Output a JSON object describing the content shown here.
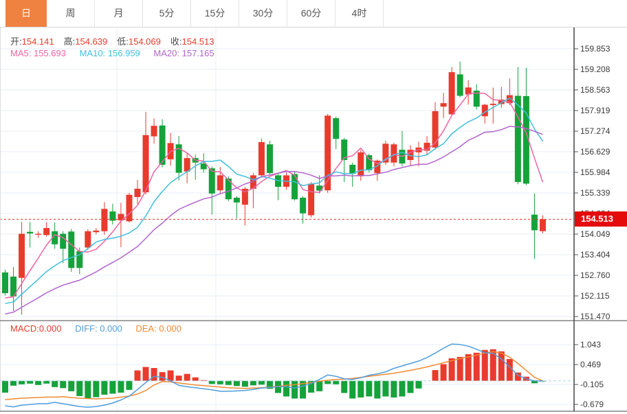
{
  "tabs": {
    "items": [
      {
        "name": "tab-day",
        "label": "日",
        "active": true
      },
      {
        "name": "tab-week",
        "label": "周",
        "active": false
      },
      {
        "name": "tab-month",
        "label": "月",
        "active": false
      },
      {
        "name": "tab-5min",
        "label": "5分",
        "active": false
      },
      {
        "name": "tab-15min",
        "label": "15分",
        "active": false
      },
      {
        "name": "tab-30min",
        "label": "30分",
        "active": false
      },
      {
        "name": "tab-60min",
        "label": "60分",
        "active": false
      },
      {
        "name": "tab-4hour",
        "label": "4时",
        "active": false
      }
    ]
  },
  "ohlc_row": {
    "open_label": "开:",
    "open_value": "154.141",
    "high_label": "高:",
    "high_value": "154.639",
    "low_label": "低:",
    "low_value": "154.069",
    "close_label": "收:",
    "close_value": "154.513"
  },
  "ma_row": {
    "ma5_label": "MA5:",
    "ma5_value": "155.693",
    "ma10_label": "MA10:",
    "ma10_value": "156.959",
    "ma20_label": "MA20:",
    "ma20_value": "157.165"
  },
  "macd_row": {
    "macd_label": "MACD:",
    "macd_value": "0.000",
    "diff_label": "DIFF:",
    "diff_value": "0.000",
    "dea_label": "DEA:",
    "dea_value": "0.000"
  },
  "price_tag": {
    "value": "154.513"
  },
  "colors": {
    "up": "#e83b2e",
    "down": "#15a23a",
    "ma5": "#ef63a2",
    "ma10": "#3fc0dc",
    "ma20": "#b164cc",
    "diff": "#4f9ddc",
    "dea": "#ef8b33",
    "tab_active_bg": "#ef8240",
    "tag_bg": "#e60b0b",
    "last_price_line": "#ee2b24",
    "zero_line": "#a9d6ec",
    "grid": "#e7eef6",
    "axis_text": "#3a3a3a",
    "frame": "#444444"
  },
  "chart_data": {
    "type": "candlestick",
    "panels": [
      {
        "name": "price-panel",
        "type": "candlestick",
        "y_tick_labels": [
          "159.853",
          "159.208",
          "158.563",
          "157.919",
          "157.274",
          "156.629",
          "155.984",
          "155.339",
          "154.694",
          "154.049",
          "153.404",
          "152.760",
          "152.115",
          "151.470"
        ],
        "ylim": [
          151.47,
          159.853
        ],
        "last_price": 154.513,
        "ma_periods": [
          5,
          10,
          20
        ],
        "ma_seed_closes_estimated": [
          150.9,
          150.95,
          151.0,
          151.05,
          151.1,
          151.15,
          151.2,
          151.3,
          151.4,
          151.5,
          151.55,
          151.6,
          151.65,
          151.7,
          151.75,
          151.8,
          151.9,
          152.0,
          152.05,
          152.1
        ],
        "candles_ohlc": [
          [
            152.85,
            152.94,
            152.13,
            152.2
          ],
          [
            152.72,
            153.02,
            151.64,
            152.1
          ],
          [
            152.68,
            154.43,
            151.53,
            154.06
          ],
          [
            154.12,
            154.43,
            153.63,
            154.07
          ],
          [
            154.04,
            154.14,
            153.93,
            154.06
          ],
          [
            154.02,
            154.43,
            153.97,
            154.24
          ],
          [
            154.14,
            154.42,
            153.59,
            153.73
          ],
          [
            154.06,
            154.14,
            153.14,
            153.59
          ],
          [
            154.13,
            154.21,
            152.87,
            152.99
          ],
          [
            153.52,
            153.63,
            152.8,
            152.99
          ],
          [
            153.63,
            154.2,
            153.56,
            154.14
          ],
          [
            154.11,
            154.24,
            154.04,
            154.16
          ],
          [
            154.14,
            155.05,
            154.03,
            154.84
          ],
          [
            154.76,
            155.0,
            154.35,
            154.47
          ],
          [
            154.48,
            155.03,
            153.64,
            154.68
          ],
          [
            154.45,
            155.34,
            154.41,
            155.28
          ],
          [
            155.21,
            155.75,
            154.99,
            155.47
          ],
          [
            155.36,
            157.88,
            155.29,
            157.15
          ],
          [
            157.11,
            157.67,
            156.88,
            157.44
          ],
          [
            157.45,
            157.65,
            156.14,
            156.22
          ],
          [
            156.39,
            157.22,
            156.19,
            156.9
          ],
          [
            156.86,
            157.12,
            155.73,
            155.97
          ],
          [
            156.01,
            156.58,
            155.64,
            156.43
          ],
          [
            156.43,
            156.54,
            155.75,
            156.29
          ],
          [
            156.26,
            156.58,
            155.97,
            156.08
          ],
          [
            156.11,
            156.17,
            154.66,
            155.32
          ],
          [
            155.42,
            156.15,
            155.32,
            155.89
          ],
          [
            155.79,
            155.86,
            155.08,
            155.14
          ],
          [
            155.19,
            155.24,
            154.54,
            155.04
          ],
          [
            154.97,
            155.53,
            154.32,
            155.47
          ],
          [
            155.47,
            155.96,
            154.86,
            155.89
          ],
          [
            155.89,
            157.04,
            155.82,
            156.93
          ],
          [
            156.86,
            156.97,
            155.91,
            155.96
          ],
          [
            155.89,
            155.94,
            155.11,
            155.53
          ],
          [
            155.53,
            155.98,
            155.44,
            155.89
          ],
          [
            155.93,
            156.0,
            155.1,
            155.14
          ],
          [
            155.19,
            155.24,
            154.38,
            154.7
          ],
          [
            154.64,
            155.68,
            154.57,
            155.63
          ],
          [
            155.57,
            155.89,
            155.32,
            155.41
          ],
          [
            155.42,
            157.81,
            155.34,
            157.76
          ],
          [
            157.68,
            157.73,
            156.71,
            157.03
          ],
          [
            157.01,
            157.06,
            155.68,
            156.37
          ],
          [
            156.22,
            156.29,
            155.53,
            155.94
          ],
          [
            155.86,
            156.69,
            155.72,
            156.61
          ],
          [
            156.52,
            156.57,
            155.98,
            156.05
          ],
          [
            155.96,
            156.39,
            155.72,
            156.35
          ],
          [
            156.29,
            156.97,
            156.22,
            156.88
          ],
          [
            156.29,
            156.91,
            156.17,
            156.86
          ],
          [
            156.69,
            157.28,
            156.17,
            156.26
          ],
          [
            156.37,
            156.83,
            156.17,
            156.69
          ],
          [
            156.61,
            156.94,
            156.17,
            156.76
          ],
          [
            156.66,
            157.12,
            156.54,
            156.91
          ],
          [
            156.76,
            158.18,
            156.69,
            157.9
          ],
          [
            158.04,
            158.47,
            157.68,
            158.15
          ],
          [
            157.8,
            159.28,
            157.75,
            159.12
          ],
          [
            159.05,
            159.45,
            158.33,
            158.38
          ],
          [
            158.42,
            158.87,
            158.1,
            158.64
          ],
          [
            158.54,
            158.74,
            157.95,
            158.04
          ],
          [
            157.74,
            158.13,
            157.51,
            158.1
          ],
          [
            158.09,
            158.64,
            157.51,
            158.13
          ],
          [
            158.12,
            158.66,
            158.0,
            158.26
          ],
          [
            158.15,
            158.92,
            158.09,
            158.4
          ],
          [
            158.38,
            159.28,
            155.61,
            155.68
          ],
          [
            158.37,
            159.26,
            155.58,
            155.63
          ],
          [
            154.66,
            155.32,
            153.27,
            154.17
          ],
          [
            154.141,
            154.639,
            154.069,
            154.513
          ]
        ]
      },
      {
        "name": "macd-panel",
        "type": "bar+line",
        "y_tick_labels": [
          "1.043",
          "0.469",
          "-0.105",
          "-0.679"
        ],
        "ylim": [
          -0.679,
          1.043
        ],
        "macd_hist": [
          -0.34,
          -0.14,
          -0.1,
          -0.08,
          -0.12,
          -0.08,
          -0.18,
          -0.21,
          -0.3,
          -0.44,
          -0.5,
          -0.47,
          -0.4,
          -0.37,
          -0.34,
          -0.26,
          0.3,
          0.4,
          0.37,
          0.25,
          0.3,
          0.15,
          0.2,
          0.1,
          0.02,
          -0.09,
          -0.1,
          -0.12,
          -0.15,
          -0.17,
          -0.13,
          -0.11,
          -0.23,
          -0.35,
          -0.45,
          -0.51,
          -0.51,
          -0.34,
          -0.3,
          -0.09,
          -0.1,
          -0.35,
          -0.51,
          -0.48,
          -0.45,
          -0.51,
          -0.45,
          -0.48,
          -0.45,
          -0.35,
          -0.22,
          0.0,
          0.31,
          0.48,
          0.65,
          0.69,
          0.77,
          0.81,
          0.89,
          0.91,
          0.85,
          0.63,
          0.24,
          0.12,
          -0.07,
          -0.02
        ],
        "diff_line": [
          -0.72,
          -0.75,
          -0.7,
          -0.68,
          -0.66,
          -0.66,
          -0.62,
          -0.66,
          -0.7,
          -0.74,
          -0.76,
          -0.74,
          -0.7,
          -0.64,
          -0.55,
          -0.44,
          -0.25,
          -0.05,
          0.13,
          0.1,
          0.0,
          -0.13,
          -0.17,
          -0.2,
          -0.23,
          -0.26,
          -0.3,
          -0.3,
          -0.29,
          -0.28,
          -0.25,
          -0.21,
          -0.19,
          -0.17,
          -0.17,
          -0.21,
          -0.15,
          -0.08,
          0.04,
          0.17,
          0.13,
          0.06,
          0.04,
          0.09,
          0.16,
          0.2,
          0.26,
          0.36,
          0.43,
          0.5,
          0.57,
          0.67,
          0.8,
          0.94,
          1.06,
          1.05,
          1.0,
          0.91,
          0.81,
          0.79,
          0.63,
          0.4,
          0.16,
          0.06,
          0.0,
          0.0
        ],
        "dea_line": [
          -0.54,
          -0.52,
          -0.5,
          -0.49,
          -0.48,
          -0.47,
          -0.47,
          -0.46,
          -0.48,
          -0.5,
          -0.51,
          -0.52,
          -0.51,
          -0.5,
          -0.47,
          -0.44,
          -0.38,
          -0.28,
          -0.12,
          -0.02,
          -0.03,
          -0.06,
          -0.09,
          -0.12,
          -0.14,
          -0.16,
          -0.18,
          -0.2,
          -0.21,
          -0.22,
          -0.21,
          -0.2,
          -0.18,
          -0.16,
          -0.13,
          -0.11,
          -0.08,
          -0.05,
          -0.01,
          0.02,
          0.04,
          0.05,
          0.07,
          0.1,
          0.13,
          0.16,
          0.19,
          0.22,
          0.26,
          0.3,
          0.35,
          0.4,
          0.46,
          0.52,
          0.58,
          0.64,
          0.69,
          0.74,
          0.8,
          0.84,
          0.8,
          0.68,
          0.5,
          0.3,
          0.1,
          0.0
        ]
      }
    ]
  }
}
